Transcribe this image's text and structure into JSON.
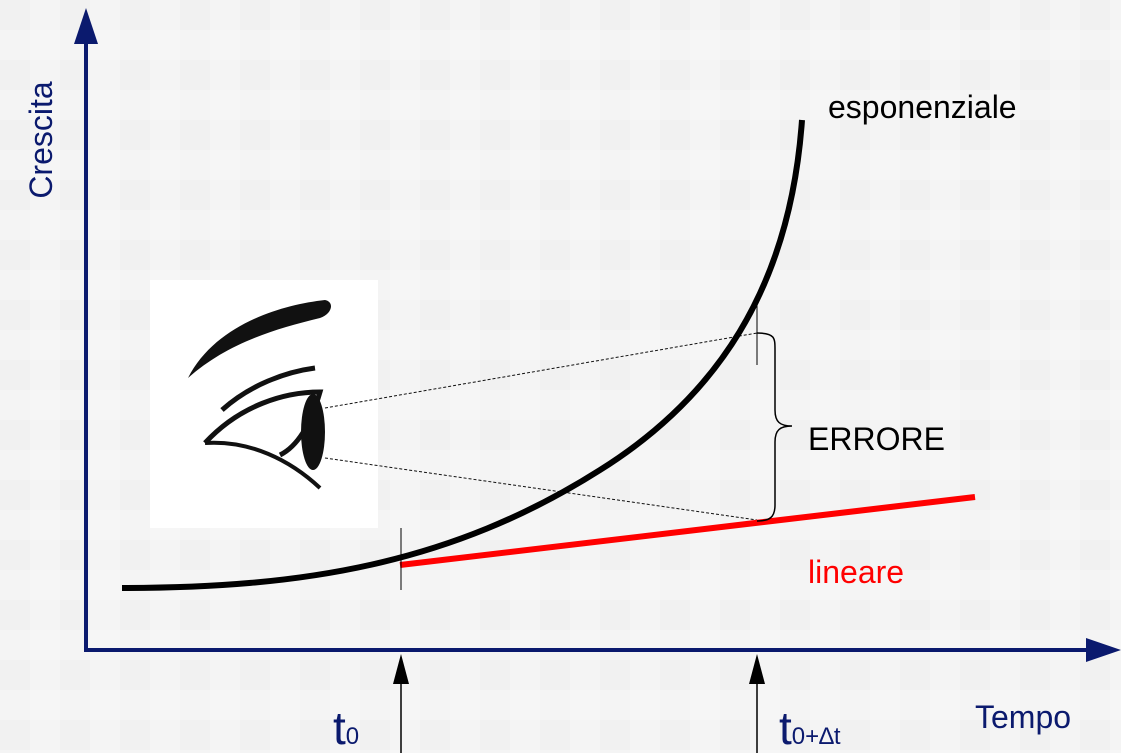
{
  "axes": {
    "y_label": "Crescita",
    "x_label": "Tempo"
  },
  "curves": [
    {
      "label": "esponenziale"
    },
    {
      "label": "lineare"
    }
  ],
  "annotation": "ERRORE",
  "markers": [
    {
      "label": "t",
      "subscript": "0"
    },
    {
      "label": "t",
      "subscript": "0+∆t"
    }
  ]
}
